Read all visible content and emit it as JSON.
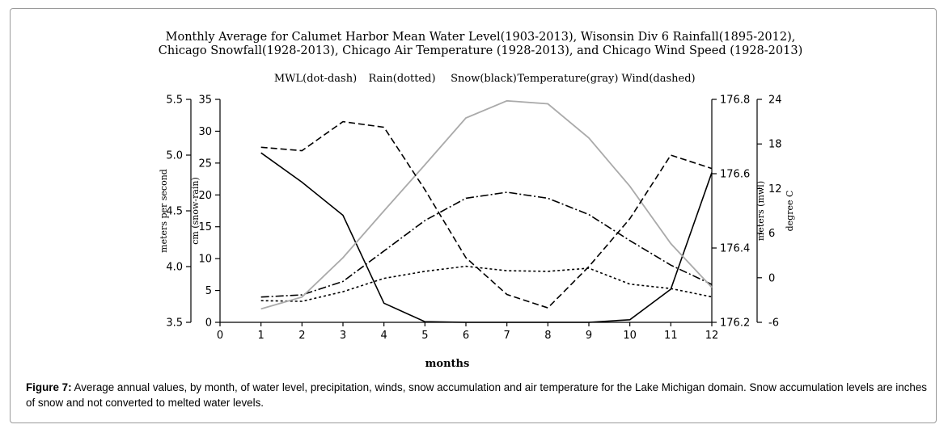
{
  "chart_data": {
    "type": "line",
    "title": "Monthly Average for Calumet Harbor Mean Water Level(1903-2013), Wisonsin Div 6 Rainfall(1895-2012),",
    "subtitle": "Chicago Snowfall(1928-2013), Chicago Air Temperature (1928-2013), and Chicago Wind Speed (1928-2013)",
    "legend": [
      "MWL(dot-dash)",
      "Rain(dotted)",
      "Snow(black)",
      "Temperature(gray)",
      "Wind(dashed)"
    ],
    "legend_position": "top",
    "xlabel": "months",
    "x": [
      1,
      2,
      3,
      4,
      5,
      6,
      7,
      8,
      9,
      10,
      11,
      12
    ],
    "x_ticks": [
      "0",
      "1",
      "2",
      "3",
      "4",
      "5",
      "6",
      "7",
      "8",
      "9",
      "10",
      "11",
      "12"
    ],
    "xlim": [
      0,
      12
    ],
    "axes": {
      "wind": {
        "label": "meters per second",
        "ylim": [
          3.5,
          5.5
        ],
        "ticks": [
          "3.5",
          "4.0",
          "4.5",
          "5.0",
          "5.5"
        ]
      },
      "precip": {
        "label": "cm (snow-rain)",
        "ylim": [
          0,
          35
        ],
        "ticks": [
          "0",
          "5",
          "10",
          "15",
          "20",
          "25",
          "30",
          "35"
        ]
      },
      "mwl": {
        "label": "meters (mwl)",
        "ylim": [
          176.2,
          176.8
        ],
        "ticks": [
          "176.2",
          "176.4",
          "176.6",
          "176.8"
        ]
      },
      "temp": {
        "label": "degree C",
        "ylim": [
          -6,
          24
        ],
        "ticks": [
          "-6",
          "0",
          "6",
          "12",
          "18",
          "24"
        ]
      }
    },
    "grid": false,
    "series": [
      {
        "name": "MWL(dot-dash)",
        "axis": "mwl",
        "style": "dot-dash",
        "color": "#000000",
        "values": [
          176.268,
          176.274,
          176.31,
          176.392,
          176.474,
          176.534,
          176.55,
          176.534,
          176.49,
          176.42,
          176.354,
          176.302
        ]
      },
      {
        "name": "Rain(dotted)",
        "axis": "precip",
        "style": "dotted",
        "color": "#000000",
        "values": [
          3.4,
          3.3,
          4.8,
          6.9,
          8.0,
          8.8,
          8.1,
          8.0,
          8.5,
          6.0,
          5.3,
          4.0
        ]
      },
      {
        "name": "Snow(black)",
        "axis": "precip",
        "style": "solid",
        "color": "#000000",
        "values": [
          26.6,
          22.0,
          16.8,
          3.0,
          0.1,
          0.0,
          0.0,
          0.0,
          0.0,
          0.4,
          5.2,
          23.5
        ]
      },
      {
        "name": "Temperature(gray)",
        "axis": "temp",
        "style": "solid",
        "color": "#aaaaaa",
        "values": [
          -4.2,
          -2.6,
          2.7,
          9.0,
          15.2,
          21.5,
          23.8,
          23.4,
          18.8,
          12.3,
          4.6,
          -1.3
        ]
      },
      {
        "name": "Wind(dashed)",
        "axis": "wind",
        "style": "dashed",
        "color": "#000000",
        "values": [
          5.07,
          5.04,
          5.3,
          5.25,
          4.69,
          4.08,
          3.75,
          3.63,
          4.0,
          4.43,
          5.0,
          4.88
        ]
      }
    ]
  },
  "caption": {
    "label": "Figure 7:",
    "text": " Average annual values, by month, of water level, precipitation, winds, snow accumulation and air temperature for the Lake Michigan domain. Snow accumulation levels are inches of snow and not converted to melted water levels."
  }
}
